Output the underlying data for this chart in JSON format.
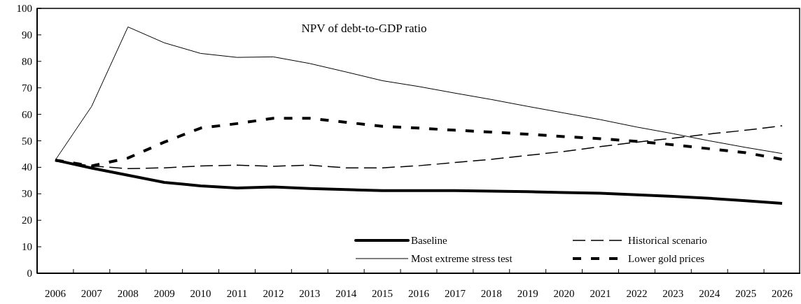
{
  "chart_data": {
    "type": "line",
    "title": "NPV of debt-to-GDP ratio",
    "categories": [
      "2006",
      "2007",
      "2008",
      "2009",
      "2010",
      "2011",
      "2012",
      "2013",
      "2014",
      "2015",
      "2016",
      "2017",
      "2018",
      "2019",
      "2020",
      "2021",
      "2022",
      "2023",
      "2024",
      "2025",
      "2026"
    ],
    "series": [
      {
        "name": "Baseline",
        "color": "#000000",
        "line_style": "solid",
        "values": [
          42.7,
          39.7,
          37,
          34.3,
          33,
          32.2,
          32.6,
          32,
          31.6,
          31.2,
          31.2,
          31.2,
          31,
          30.8,
          30.5,
          30.2,
          29.6,
          29,
          28.3,
          27.4,
          26.4
        ]
      },
      {
        "name": "Historical scenario",
        "color": "#000000",
        "line_style": "dashed",
        "values": [
          42.7,
          40.5,
          39.5,
          39.8,
          40.5,
          40.8,
          40.4,
          40.8,
          39.8,
          39.8,
          40.6,
          41.8,
          43,
          44.5,
          46,
          47.8,
          49.5,
          51,
          52.6,
          54,
          55.7
        ]
      },
      {
        "name": "Most extreme stress test",
        "color": "#000000",
        "line_style": "solid",
        "values": [
          42.7,
          63,
          93,
          87,
          83,
          81.5,
          81.7,
          79.2,
          76,
          72.7,
          70.5,
          68,
          65.6,
          63,
          60.5,
          58,
          55.2,
          52.7,
          50,
          47.5,
          45.2
        ]
      },
      {
        "name": "Lower gold prices",
        "color": "#000000",
        "line_style": "dotted",
        "values": [
          42.7,
          40.5,
          43.5,
          49.5,
          54.8,
          56.5,
          58.5,
          58.5,
          57,
          55.5,
          54.8,
          54,
          53.3,
          52.5,
          51.6,
          50.8,
          49.8,
          48.5,
          47,
          45.5,
          43
        ]
      }
    ],
    "ylim": [
      0,
      100
    ],
    "yticks": [
      0,
      10,
      20,
      30,
      40,
      50,
      60,
      70,
      80,
      90,
      100
    ],
    "grid": false,
    "legend": "bottom",
    "marker": "none"
  }
}
